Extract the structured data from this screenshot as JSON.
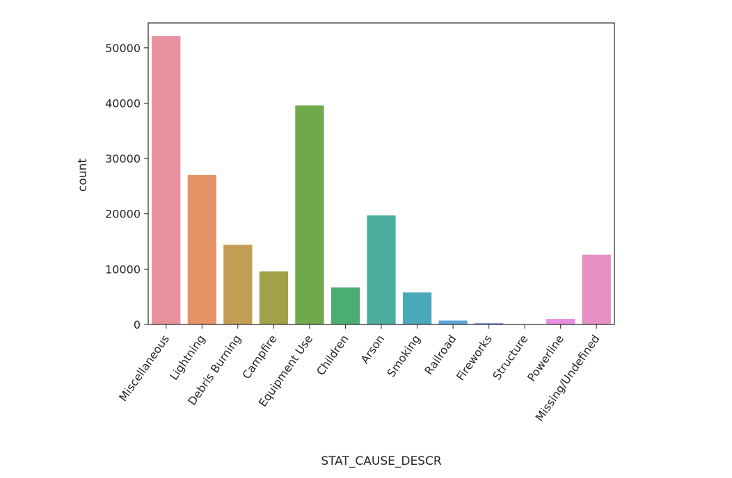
{
  "chart_data": {
    "type": "bar",
    "title": "",
    "xlabel": "STAT_CAUSE_DESCR",
    "ylabel": "count",
    "ylim": [
      0,
      54500
    ],
    "yticks": [
      0,
      10000,
      20000,
      30000,
      40000,
      50000
    ],
    "grid": false,
    "categories": [
      "Miscellaneous",
      "Lightning",
      "Debris Burning",
      "Campfire",
      "Equipment Use",
      "Children",
      "Arson",
      "Smoking",
      "Railroad",
      "Fireworks",
      "Structure",
      "Powerline",
      "Missing/Undefined"
    ],
    "values": [
      52100,
      27000,
      14400,
      9600,
      39600,
      6700,
      19700,
      5800,
      700,
      250,
      30,
      1000,
      12600
    ],
    "colors": [
      "#e8919f",
      "#e59266",
      "#c29d54",
      "#a3a04a",
      "#70a94c",
      "#4cad72",
      "#4bae9e",
      "#4aa9b9",
      "#5aa5d8",
      "#8c9ce4",
      "#c28fe4",
      "#e98ee0",
      "#e68fc3"
    ]
  }
}
